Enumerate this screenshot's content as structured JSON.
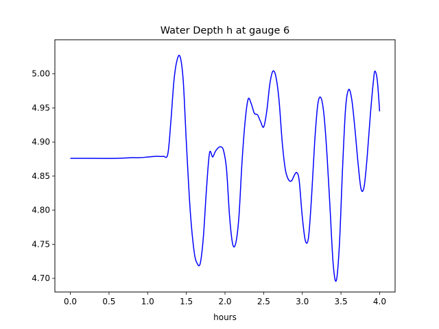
{
  "chart_data": {
    "type": "line",
    "title": "Water Depth h at gauge 6",
    "xlabel": "hours",
    "ylabel": "",
    "xlim": [
      -0.2,
      4.2
    ],
    "ylim": [
      4.68,
      5.05
    ],
    "xticks": [
      0.0,
      0.5,
      1.0,
      1.5,
      2.0,
      2.5,
      3.0,
      3.5,
      4.0
    ],
    "xtick_labels": [
      "0.0",
      "0.5",
      "1.0",
      "1.5",
      "2.0",
      "2.5",
      "3.0",
      "3.5",
      "4.0"
    ],
    "yticks": [
      4.7,
      4.75,
      4.8,
      4.85,
      4.9,
      4.95,
      5.0
    ],
    "ytick_labels": [
      "4.70",
      "4.75",
      "4.80",
      "4.85",
      "4.90",
      "4.95",
      "5.00"
    ],
    "grid": false,
    "series": [
      {
        "color": "#0000ff",
        "x": [
          0.0,
          0.3,
          0.6,
          0.8,
          0.9,
          1.0,
          1.1,
          1.2,
          1.26,
          1.3,
          1.34,
          1.38,
          1.42,
          1.46,
          1.5,
          1.55,
          1.6,
          1.64,
          1.68,
          1.72,
          1.76,
          1.8,
          1.84,
          1.87,
          1.9,
          1.94,
          1.98,
          2.02,
          2.06,
          2.1,
          2.14,
          2.18,
          2.22,
          2.26,
          2.3,
          2.34,
          2.38,
          2.42,
          2.46,
          2.5,
          2.54,
          2.58,
          2.62,
          2.66,
          2.7,
          2.74,
          2.78,
          2.82,
          2.86,
          2.9,
          2.93,
          2.96,
          3.0,
          3.04,
          3.08,
          3.12,
          3.16,
          3.2,
          3.24,
          3.28,
          3.32,
          3.36,
          3.4,
          3.44,
          3.48,
          3.52,
          3.56,
          3.6,
          3.64,
          3.68,
          3.72,
          3.76,
          3.8,
          3.84,
          3.88,
          3.92,
          3.94,
          3.97,
          4.0
        ],
        "y": [
          4.876,
          4.876,
          4.876,
          4.877,
          4.877,
          4.878,
          4.879,
          4.879,
          4.882,
          4.93,
          4.99,
          5.02,
          5.025,
          4.99,
          4.9,
          4.8,
          4.74,
          4.722,
          4.722,
          4.76,
          4.83,
          4.884,
          4.878,
          4.885,
          4.89,
          4.893,
          4.888,
          4.86,
          4.79,
          4.75,
          4.752,
          4.79,
          4.87,
          4.93,
          4.963,
          4.956,
          4.942,
          4.94,
          4.93,
          4.922,
          4.945,
          4.985,
          5.004,
          4.995,
          4.96,
          4.9,
          4.86,
          4.845,
          4.843,
          4.852,
          4.855,
          4.843,
          4.79,
          4.755,
          4.76,
          4.82,
          4.9,
          4.955,
          4.965,
          4.94,
          4.88,
          4.8,
          4.72,
          4.697,
          4.75,
          4.86,
          4.95,
          4.977,
          4.962,
          4.92,
          4.87,
          4.831,
          4.835,
          4.88,
          4.94,
          4.99,
          5.004,
          4.99,
          4.945
        ]
      }
    ]
  }
}
